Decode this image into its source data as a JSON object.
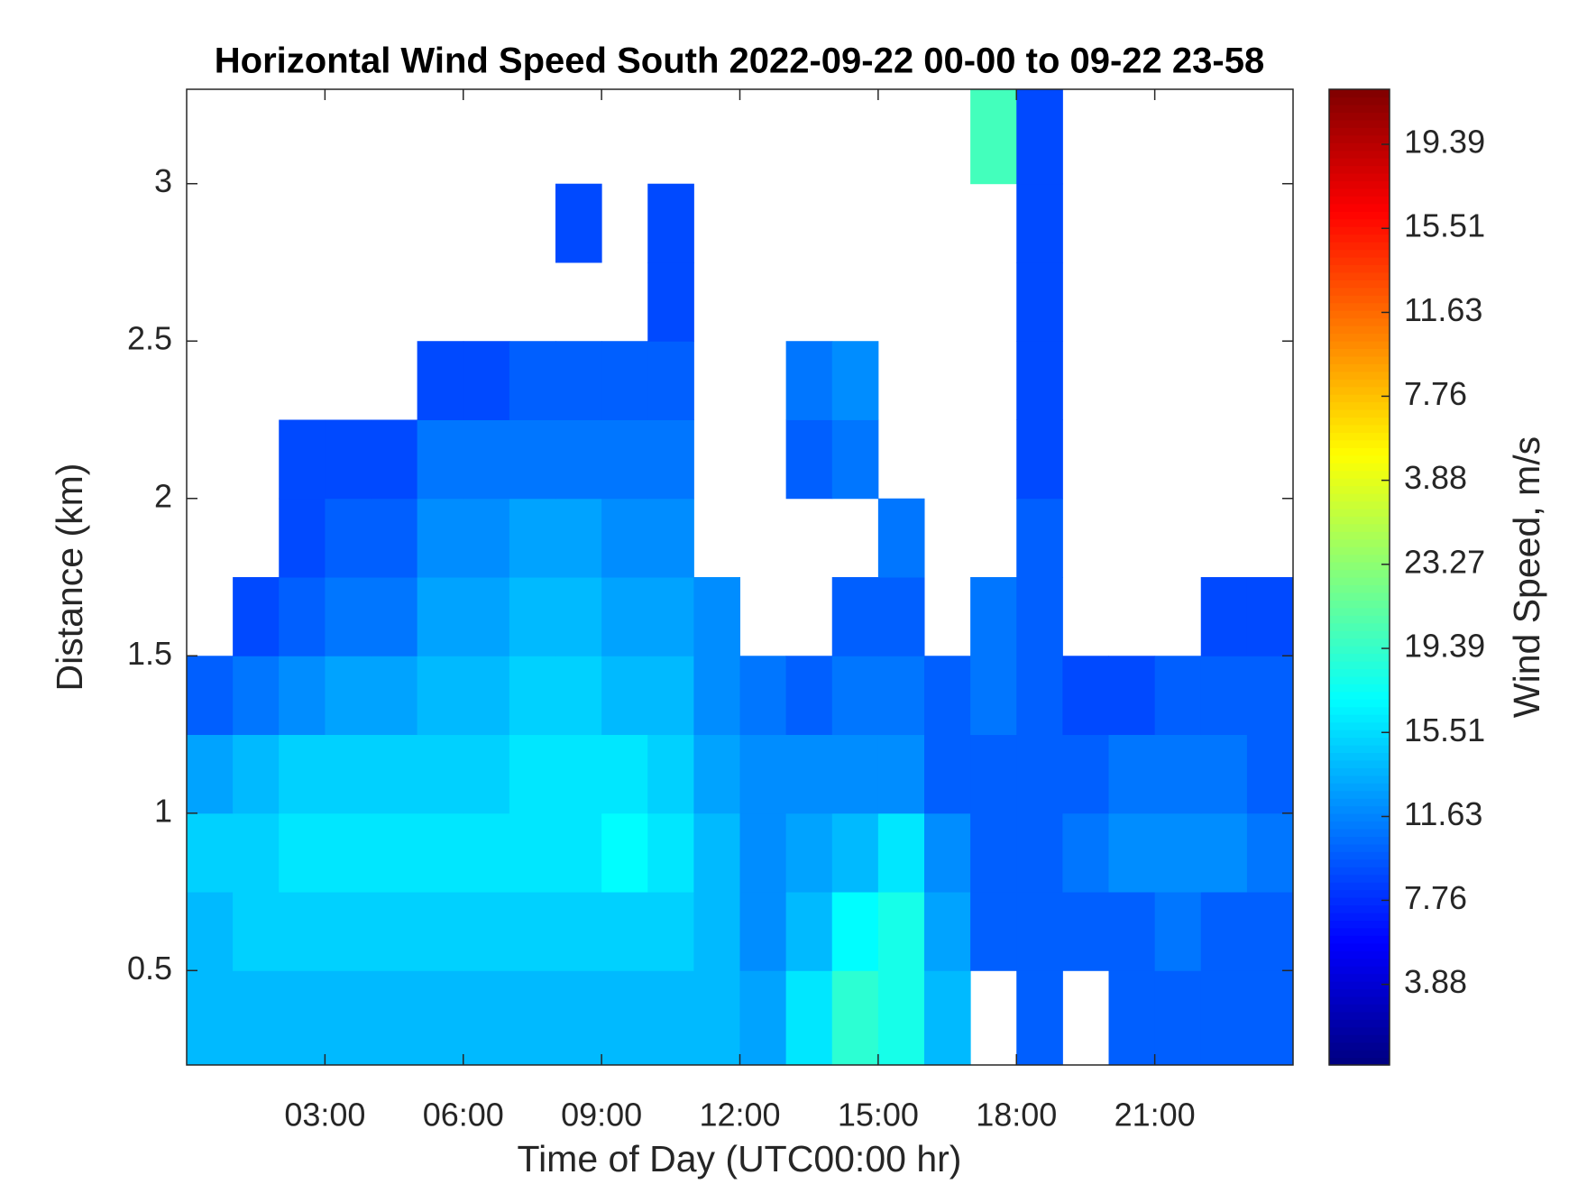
{
  "chart_data": {
    "type": "heatmap",
    "title": "Horizontal Wind Speed South 2022-09-22 00-00 to 09-22 23-58",
    "x_label": "Time of Day (UTC00:00 hr)",
    "y_label": "Distance (km)",
    "colorbar_label": "Wind Speed, m/s",
    "colormap": "jet",
    "xlim": [
      0,
      24
    ],
    "xticks": [
      {
        "value": 3,
        "label": "03:00"
      },
      {
        "value": 6,
        "label": "06:00"
      },
      {
        "value": 9,
        "label": "09:00"
      },
      {
        "value": 12,
        "label": "12:00"
      },
      {
        "value": 15,
        "label": "15:00"
      },
      {
        "value": 18,
        "label": "18:00"
      },
      {
        "value": 21,
        "label": "21:00"
      }
    ],
    "ylim": [
      0.2,
      3.3
    ],
    "yticks": [
      0.5,
      1,
      1.5,
      2,
      2.5,
      3
    ],
    "clim": [
      0.16,
      45.2
    ],
    "cticks": [
      3.88,
      7.76,
      11.63,
      15.51,
      19.39,
      23.27,
      {
        "value": 27.15,
        "label": "3.88"
      },
      {
        "value": 31.03,
        "label": "7.76"
      },
      {
        "value": 34.9,
        "label": "11.63"
      },
      {
        "value": 38.78,
        "label": "15.51"
      },
      {
        "value": 42.66,
        "label": "19.39"
      }
    ],
    "x_bins": [
      0,
      1,
      2,
      3,
      4,
      5,
      6,
      7,
      8,
      9,
      10,
      11,
      12,
      13,
      14,
      15,
      16,
      17,
      18,
      19,
      20,
      21,
      22,
      23,
      24
    ],
    "y_bins": [
      0.2,
      0.5,
      0.75,
      1,
      1.25,
      1.5,
      1.75,
      2,
      2.25,
      2.5,
      2.75,
      3,
      3.3
    ],
    "z": [
      [
        14,
        14,
        14,
        14,
        14,
        14,
        14,
        14,
        14,
        14,
        14,
        14,
        13,
        16,
        19,
        18,
        14,
        null,
        10,
        null,
        10,
        10,
        10,
        10
      ],
      [
        14,
        15,
        15,
        15,
        15,
        15,
        15,
        15,
        15,
        15,
        15,
        14,
        12,
        14,
        17,
        18,
        13,
        10,
        10,
        10,
        10,
        11,
        10,
        10
      ],
      [
        15,
        15,
        16,
        16,
        16,
        16,
        16,
        16,
        16,
        17,
        16,
        14,
        12,
        13,
        14,
        16,
        12,
        10,
        10,
        11,
        12,
        12,
        12,
        11
      ],
      [
        13,
        14,
        15,
        15,
        15,
        15,
        15,
        16,
        16,
        16,
        15,
        13,
        12,
        12,
        12,
        12,
        10,
        10,
        10,
        10,
        11,
        11,
        11,
        10
      ],
      [
        10,
        11,
        12,
        13,
        13,
        14,
        14,
        15,
        15,
        14,
        14,
        12,
        11,
        10,
        11,
        11,
        10,
        11,
        10,
        9,
        9,
        10,
        10,
        10
      ],
      [
        null,
        9,
        10,
        11,
        11,
        13,
        13,
        14,
        14,
        13,
        13,
        12,
        null,
        null,
        10,
        10,
        null,
        11,
        10,
        null,
        null,
        null,
        9,
        9
      ],
      [
        null,
        null,
        9,
        10,
        10,
        12,
        12,
        13,
        13,
        12,
        12,
        null,
        null,
        null,
        null,
        11,
        null,
        null,
        10,
        null,
        null,
        null,
        null,
        null
      ],
      [
        null,
        null,
        9,
        9,
        9,
        11,
        11,
        11,
        11,
        11,
        11,
        null,
        null,
        10,
        11,
        null,
        null,
        null,
        9,
        null,
        null,
        null,
        null,
        null
      ],
      [
        null,
        null,
        null,
        null,
        null,
        9,
        9,
        10,
        10,
        10,
        10,
        null,
        null,
        11,
        12,
        null,
        null,
        null,
        9,
        null,
        null,
        null,
        null,
        null
      ],
      [
        null,
        null,
        null,
        null,
        null,
        null,
        null,
        null,
        null,
        null,
        9,
        null,
        null,
        null,
        null,
        null,
        null,
        null,
        9,
        null,
        null,
        null,
        null,
        null
      ],
      [
        null,
        null,
        null,
        null,
        null,
        null,
        null,
        null,
        9,
        null,
        9,
        null,
        null,
        null,
        null,
        null,
        null,
        null,
        9,
        null,
        null,
        null,
        null,
        null
      ],
      [
        null,
        null,
        null,
        null,
        null,
        null,
        null,
        null,
        null,
        null,
        null,
        null,
        null,
        null,
        null,
        null,
        null,
        20,
        9,
        null,
        null,
        null,
        null,
        null
      ]
    ]
  }
}
